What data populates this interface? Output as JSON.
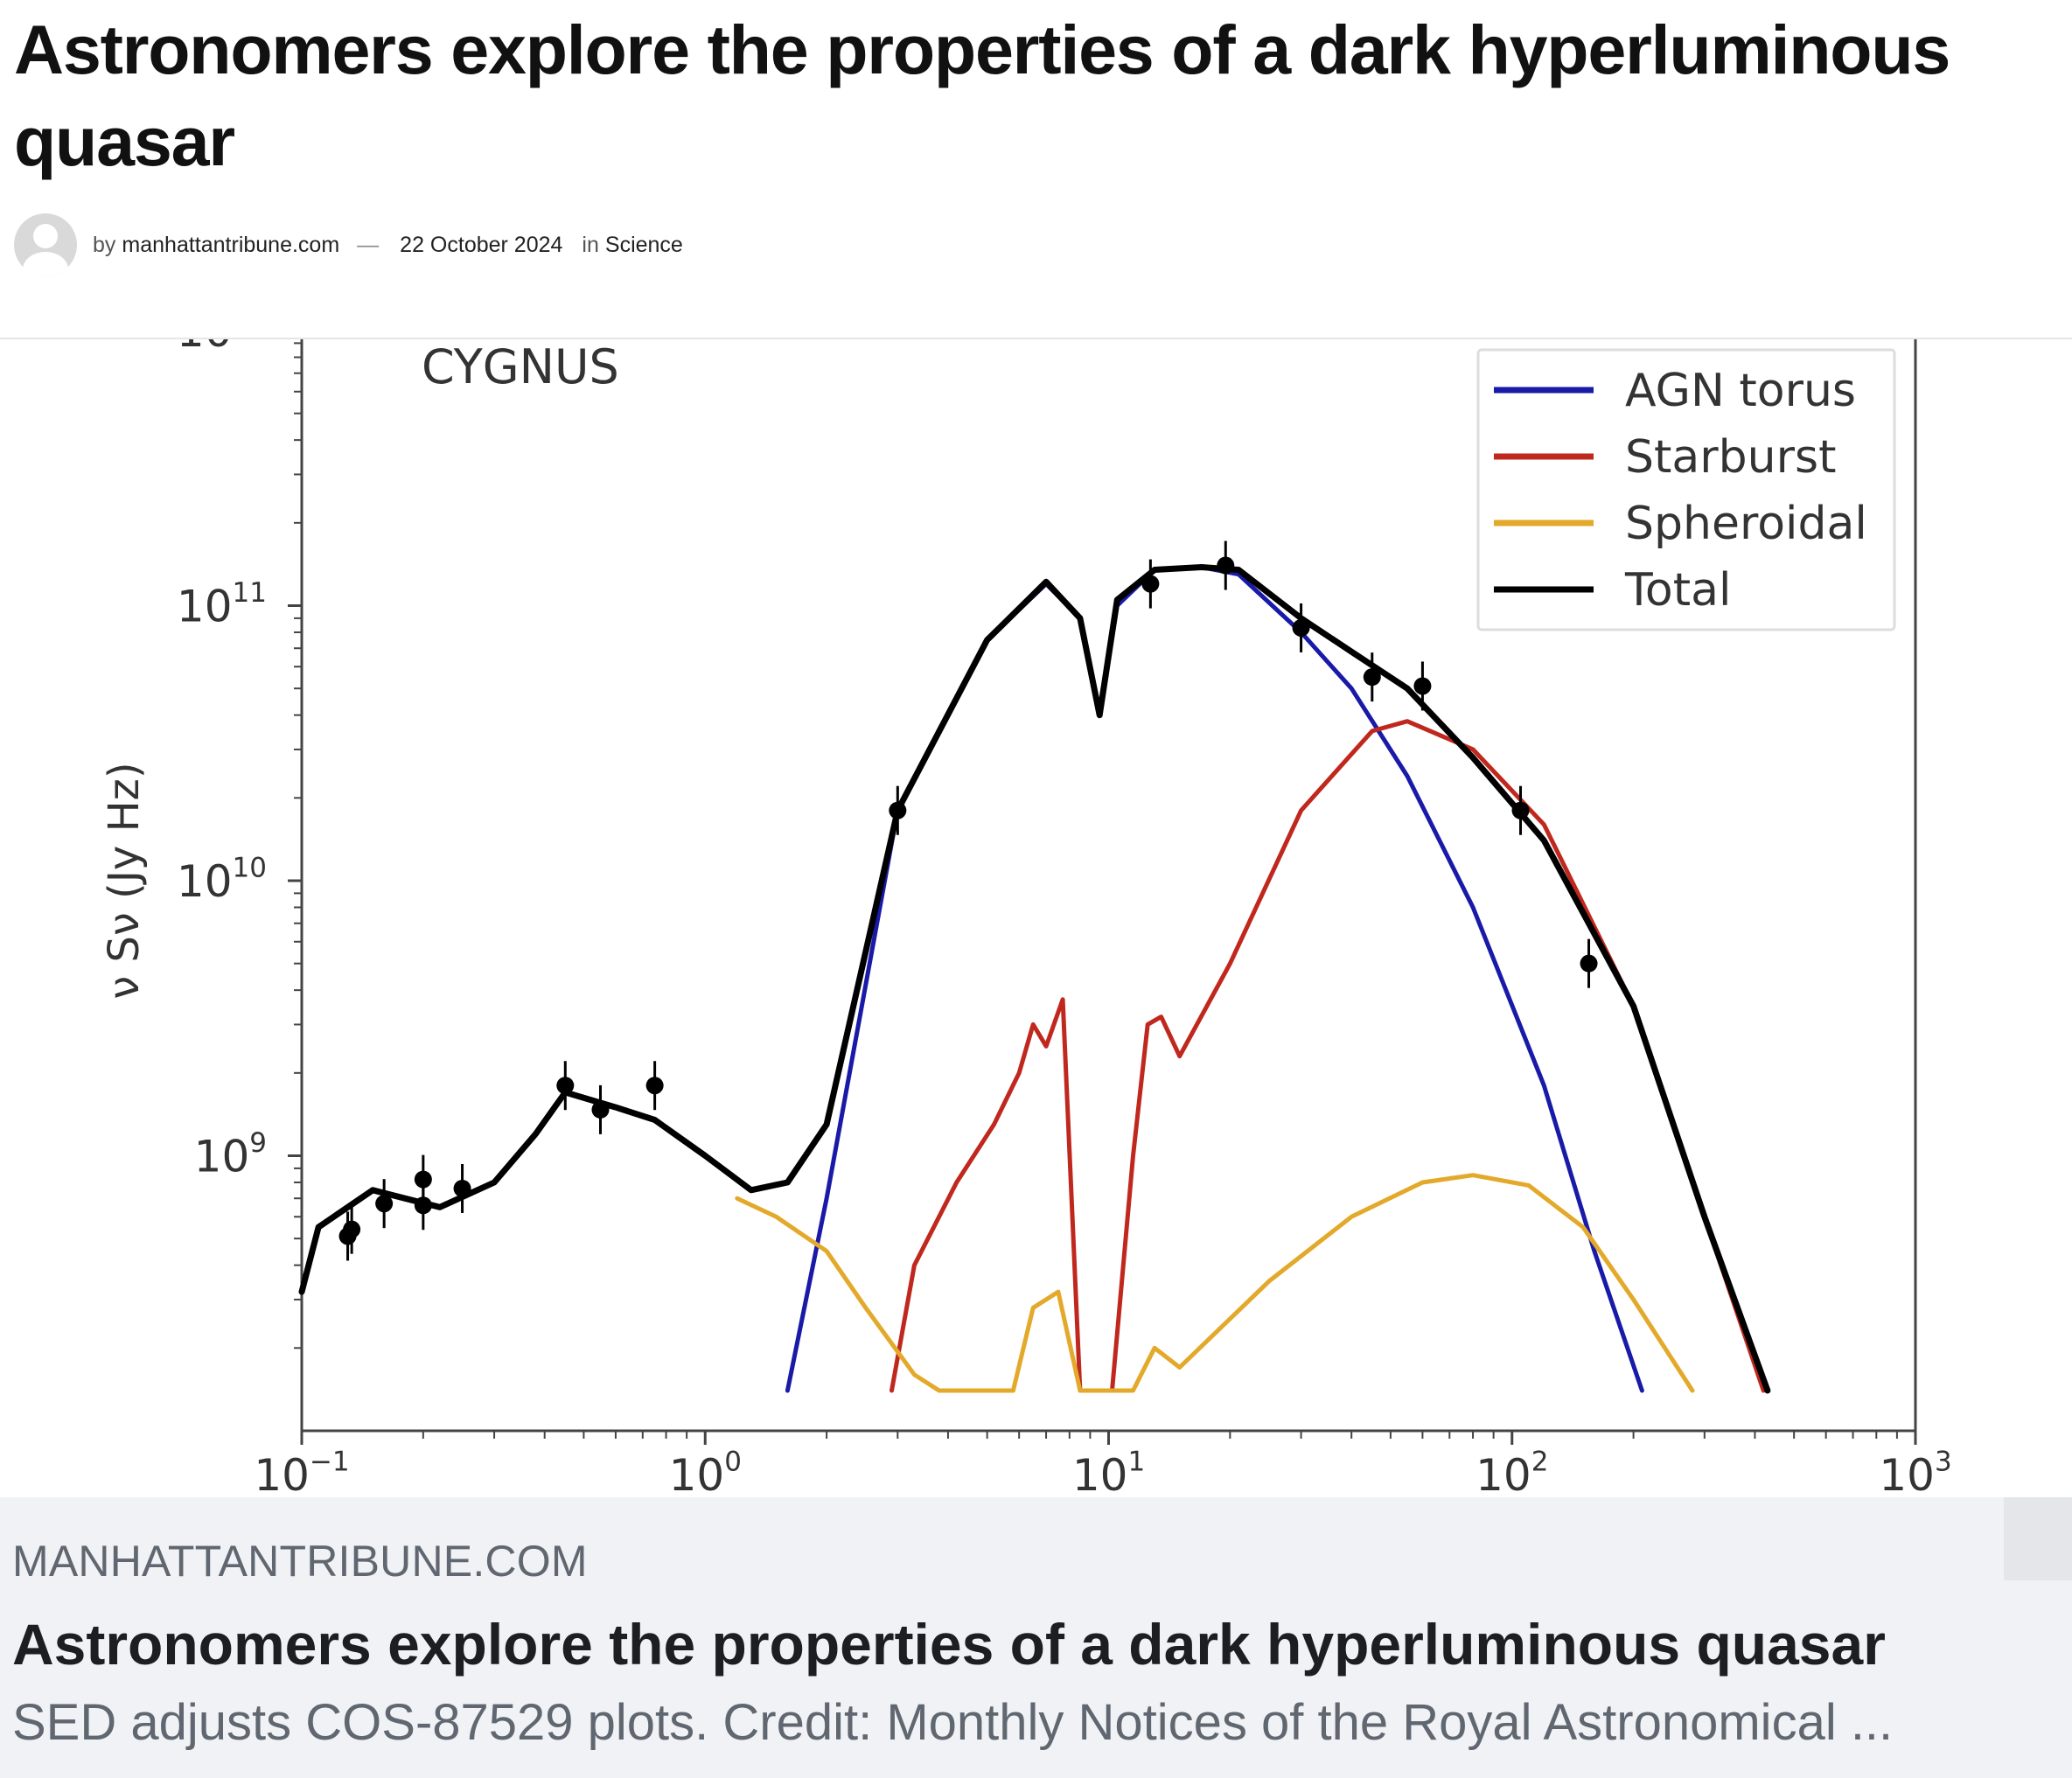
{
  "article": {
    "title": "Astronomers explore the properties of a dark hyperluminous quasar",
    "by_label": "by",
    "author": "manhattantribune.com",
    "separator": "—",
    "date": "22 October 2024",
    "in_label": "in",
    "category": "Science"
  },
  "figure": {
    "panel_label": "CYGNUS",
    "ylabel": "ν S_ν (Jy Hz)",
    "y_ticks": [
      "10^11",
      "10^10",
      "10^9"
    ],
    "x_ticks": [
      "10^-1",
      "10^0",
      "10^1",
      "10^2",
      "10^3"
    ],
    "legend": [
      {
        "name": "AGN torus",
        "color": "#1a1aa8"
      },
      {
        "name": "Starburst",
        "color": "#c0281e"
      },
      {
        "name": "Spheroidal",
        "color": "#e3a92b"
      },
      {
        "name": "Total",
        "color": "#000000"
      }
    ]
  },
  "chart_data": {
    "type": "line",
    "title": "CYGNUS",
    "xlabel": "",
    "ylabel": "ν S_ν (Jy Hz)",
    "xscale": "log",
    "yscale": "log",
    "xlim": [
      0.1,
      1000
    ],
    "ylim": [
      100000000.0,
      1000000000000.0
    ],
    "legend_position": "top-right",
    "grid": false,
    "series": [
      {
        "name": "AGN torus",
        "color": "#1a1aa8",
        "x": [
          1.6,
          2.0,
          3.0,
          5.0,
          7.0,
          8.5,
          9.5,
          10.5,
          13,
          17,
          21,
          30,
          40,
          55,
          80,
          120,
          160,
          210
        ],
        "y": [
          140000000.0,
          700000000.0,
          18000000000.0,
          75000000000.0,
          120000000000.0,
          90000000000.0,
          40000000000.0,
          100000000000.0,
          135000000000.0,
          138000000000.0,
          130000000000.0,
          80000000000.0,
          50000000000.0,
          24000000000.0,
          8000000000.0,
          1800000000.0,
          450000000.0,
          140000000.0
        ]
      },
      {
        "name": "Starburst",
        "color": "#c0281e",
        "x": [
          2.9,
          3.3,
          4.2,
          5.2,
          6.0,
          6.5,
          7.0,
          7.7,
          8.5,
          9.3,
          10.2,
          11.5,
          12.5,
          13.5,
          15,
          20,
          30,
          45,
          55,
          80,
          120,
          200,
          300,
          420
        ],
        "y": [
          140000000.0,
          400000000.0,
          800000000.0,
          1300000000.0,
          2000000000.0,
          3000000000.0,
          2500000000.0,
          3700000000.0,
          140000000.0,
          140000000.0,
          140000000.0,
          1000000000.0,
          3000000000.0,
          3200000000.0,
          2300000000.0,
          5000000000.0,
          18000000000.0,
          35000000000.0,
          38000000000.0,
          30000000000.0,
          16000000000.0,
          3500000000.0,
          600000000.0,
          140000000.0
        ]
      },
      {
        "name": "Spheroidal",
        "color": "#e3a92b",
        "x": [
          1.2,
          1.5,
          2.0,
          2.5,
          3.3,
          3.8,
          5.8,
          6.5,
          7.5,
          8.5,
          11.5,
          13,
          15,
          25,
          40,
          60,
          80,
          110,
          150,
          200,
          280
        ],
        "y": [
          700000000.0,
          600000000.0,
          450000000.0,
          280000000.0,
          160000000.0,
          140000000.0,
          140000000.0,
          280000000.0,
          320000000.0,
          140000000.0,
          140000000.0,
          200000000.0,
          170000000.0,
          350000000.0,
          600000000.0,
          800000000.0,
          850000000.0,
          780000000.0,
          550000000.0,
          300000000.0,
          140000000.0
        ]
      },
      {
        "name": "Total",
        "color": "#000000",
        "x": [
          0.1,
          0.11,
          0.13,
          0.15,
          0.18,
          0.22,
          0.3,
          0.38,
          0.45,
          0.6,
          0.75,
          1.0,
          1.3,
          1.6,
          2.0,
          3.0,
          5.0,
          7.0,
          8.5,
          9.5,
          10.5,
          13,
          17,
          21,
          30,
          40,
          55,
          80,
          120,
          200,
          300,
          430
        ],
        "y": [
          320000000.0,
          550000000.0,
          650000000.0,
          750000000.0,
          700000000.0,
          650000000.0,
          800000000.0,
          1200000000.0,
          1700000000.0,
          1500000000.0,
          1350000000.0,
          1000000000.0,
          750000000.0,
          800000000.0,
          1300000000.0,
          18000000000.0,
          75000000000.0,
          122000000000.0,
          90000000000.0,
          40000000000.0,
          105000000000.0,
          135000000000.0,
          138000000000.0,
          135000000000.0,
          90000000000.0,
          68000000000.0,
          50000000000.0,
          28000000000.0,
          14000000000.0,
          3500000000.0,
          600000000.0,
          140000000.0
        ]
      },
      {
        "name": "",
        "type": "scatter",
        "color": "#000000",
        "x": [
          0.13,
          0.133,
          0.16,
          0.2,
          0.2,
          0.25,
          0.45,
          0.55,
          0.75,
          3.0,
          12.7,
          19.5,
          30,
          45,
          60,
          105,
          155
        ],
        "y": [
          510000000.0,
          540000000.0,
          670000000.0,
          660000000.0,
          820000000.0,
          760000000.0,
          1800000000.0,
          1470000000.0,
          1800000000.0,
          18000000000.0,
          120000000000.0,
          140000000000.0,
          83000000000.0,
          55000000000.0,
          51000000000.0,
          18000000000.0,
          5000000000.0
        ]
      }
    ]
  },
  "link_card": {
    "domain": "MANHATTANTRIBUNE.COM",
    "title": "Astronomers explore the properties of a dark hyperluminous quasar",
    "description": "SED adjusts COS-87529 plots. Credit: Monthly Notices of the Royal Astronomical ..."
  }
}
